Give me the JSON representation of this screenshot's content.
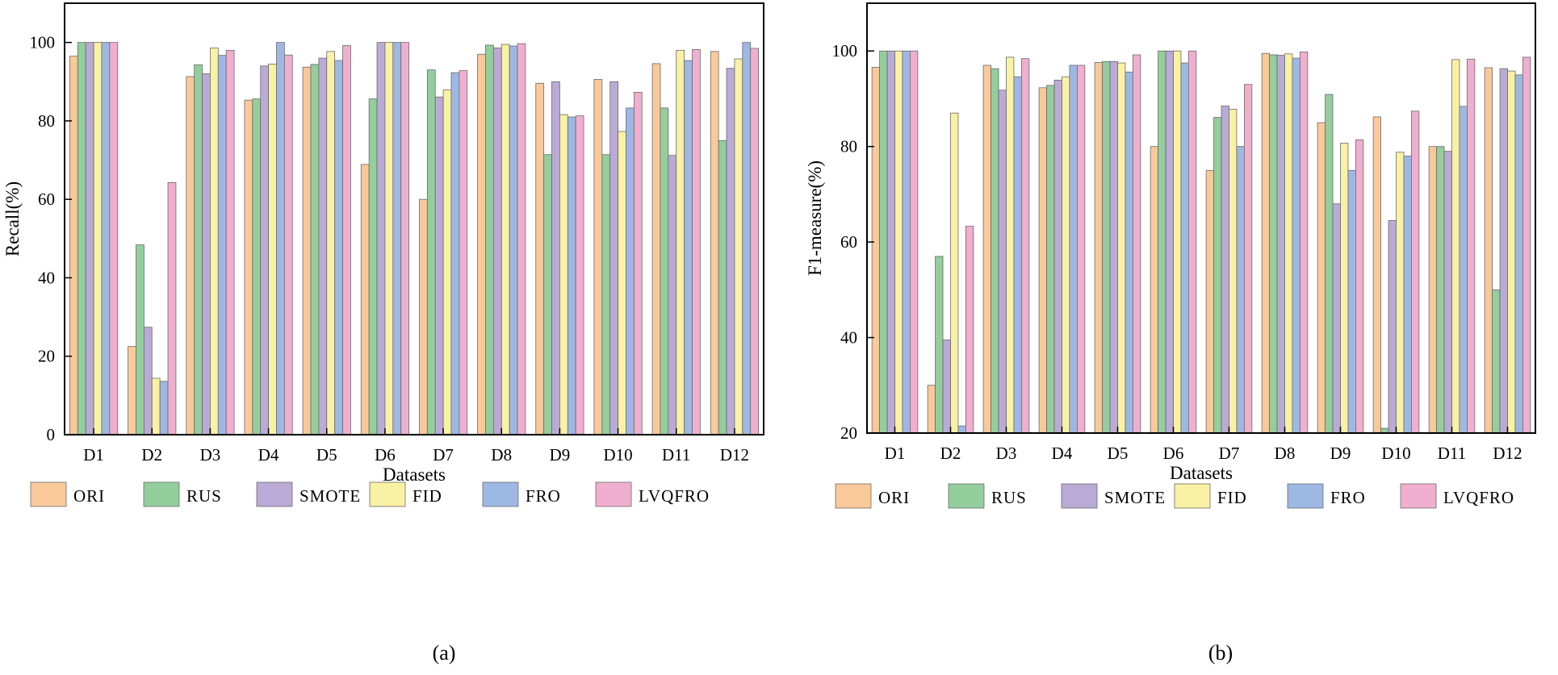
{
  "chart_data": [
    {
      "panel_label": "(a)",
      "type": "bar",
      "title": "",
      "xlabel": "Datasets",
      "ylabel": "Recall(%)",
      "ylim": [
        0,
        110
      ],
      "yticks": [
        0,
        20,
        40,
        60,
        80,
        100
      ],
      "grid": false,
      "legend_position": "bottom",
      "categories": [
        "D1",
        "D2",
        "D3",
        "D4",
        "D5",
        "D6",
        "D7",
        "D8",
        "D9",
        "D10",
        "D11",
        "D12"
      ],
      "series": [
        {
          "name": "ORI",
          "color": "#F9C99A",
          "values": [
            96.5,
            22.5,
            91.3,
            85.3,
            93.7,
            68.9,
            60.0,
            97.0,
            89.6,
            90.6,
            94.6,
            97.7
          ]
        },
        {
          "name": "RUS",
          "color": "#93CE9C",
          "values": [
            100,
            48.4,
            94.3,
            85.6,
            94.4,
            85.6,
            93.0,
            99.3,
            71.4,
            71.4,
            83.3,
            75.0
          ]
        },
        {
          "name": "SMOTE",
          "color": "#BAAAD6",
          "values": [
            100,
            27.4,
            92.0,
            94.0,
            96.0,
            100,
            86.1,
            98.6,
            90.0,
            90.0,
            71.2,
            93.4
          ]
        },
        {
          "name": "FID",
          "color": "#F9F1A3",
          "values": [
            100,
            14.4,
            98.6,
            94.5,
            97.7,
            100,
            87.9,
            99.5,
            81.6,
            77.3,
            98.0,
            95.8
          ]
        },
        {
          "name": "FRO",
          "color": "#9DB8E3",
          "values": [
            100,
            13.6,
            96.7,
            100,
            95.4,
            100,
            92.3,
            99.1,
            81.0,
            83.3,
            95.4,
            100
          ]
        },
        {
          "name": "LVQFRO",
          "color": "#F0AFCE",
          "values": [
            100,
            64.3,
            98.0,
            96.8,
            99.2,
            100,
            92.8,
            99.7,
            81.3,
            87.3,
            98.2,
            98.5
          ]
        }
      ]
    },
    {
      "panel_label": "(b)",
      "type": "bar",
      "title": "",
      "xlabel": "Datasets",
      "ylabel": "F1-measure(%)",
      "ylim": [
        20,
        110
      ],
      "yticks": [
        20,
        40,
        60,
        80,
        100
      ],
      "grid": false,
      "legend_position": "bottom",
      "categories": [
        "D1",
        "D2",
        "D3",
        "D4",
        "D5",
        "D6",
        "D7",
        "D8",
        "D9",
        "D10",
        "D11",
        "D12"
      ],
      "series": [
        {
          "name": "ORI",
          "color": "#F9C99A",
          "values": [
            96.6,
            30.0,
            97.0,
            92.3,
            97.6,
            80.0,
            75.0,
            99.5,
            85.0,
            86.2,
            80.0,
            96.5
          ]
        },
        {
          "name": "RUS",
          "color": "#93CE9C",
          "values": [
            100,
            57.0,
            96.3,
            92.8,
            97.8,
            100,
            86.1,
            99.2,
            90.9,
            21.0,
            80.0,
            50.0
          ]
        },
        {
          "name": "SMOTE",
          "color": "#BAAAD6",
          "values": [
            100,
            39.5,
            91.8,
            93.9,
            97.8,
            100,
            88.5,
            99.1,
            68.0,
            64.5,
            79.0,
            96.3
          ]
        },
        {
          "name": "FID",
          "color": "#F9F1A3",
          "values": [
            100,
            87.0,
            98.7,
            94.6,
            97.5,
            100,
            87.8,
            99.4,
            80.7,
            78.8,
            98.2,
            95.8
          ]
        },
        {
          "name": "FRO",
          "color": "#9DB8E3",
          "values": [
            100,
            21.5,
            94.6,
            97.0,
            95.6,
            97.5,
            80.0,
            98.5,
            75.0,
            78.0,
            88.4,
            95.0
          ]
        },
        {
          "name": "LVQFRO",
          "color": "#F0AFCE",
          "values": [
            100,
            63.3,
            98.4,
            97.0,
            99.2,
            100,
            93.0,
            99.8,
            81.4,
            87.4,
            98.3,
            98.7
          ]
        }
      ]
    }
  ]
}
